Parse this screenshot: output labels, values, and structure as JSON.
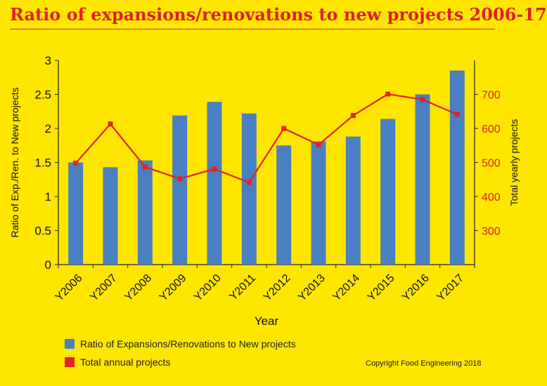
{
  "title": "Ratio of expansions/renovations to new projects 2006-17",
  "copyright": "Copyright Food Engineering 2018",
  "colors": {
    "bar": "#4a7fc1",
    "line": "#e8211f",
    "axis": "#222222",
    "right_axis_text": "#e21f26"
  },
  "chart_data": {
    "type": "bar",
    "categories": [
      "Y2006",
      "Y2007",
      "Y2008",
      "Y2009",
      "Y2010",
      "Y2011",
      "Y2012",
      "Y2013",
      "Y2014",
      "Y2015",
      "Y2016",
      "Y2017"
    ],
    "series": [
      {
        "name": "Ratio of Expansions/Renovations to New projects",
        "type": "bar",
        "axis": "left",
        "values": [
          1.5,
          1.43,
          1.53,
          2.19,
          2.39,
          2.22,
          1.75,
          1.81,
          1.88,
          2.14,
          2.5,
          2.85
        ]
      },
      {
        "name": "Total annual projects",
        "type": "line",
        "axis": "right",
        "values": [
          498,
          613,
          487,
          452,
          481,
          441,
          600,
          552,
          638,
          701,
          685,
          641
        ]
      }
    ],
    "xlabel": "Year",
    "ylabel": "Ratio of Exp./Ren. to New projects",
    "y2label": "Total yearly projects",
    "ylim": [
      0,
      3
    ],
    "yticks": [
      "0",
      "0.5",
      "1",
      "1.5",
      "2",
      "2.5",
      "3"
    ],
    "y2lim": [
      200,
      800
    ],
    "y2ticks": [
      "300",
      "400",
      "500",
      "600",
      "700"
    ],
    "legend_position": "bottom-left",
    "grid": false
  }
}
